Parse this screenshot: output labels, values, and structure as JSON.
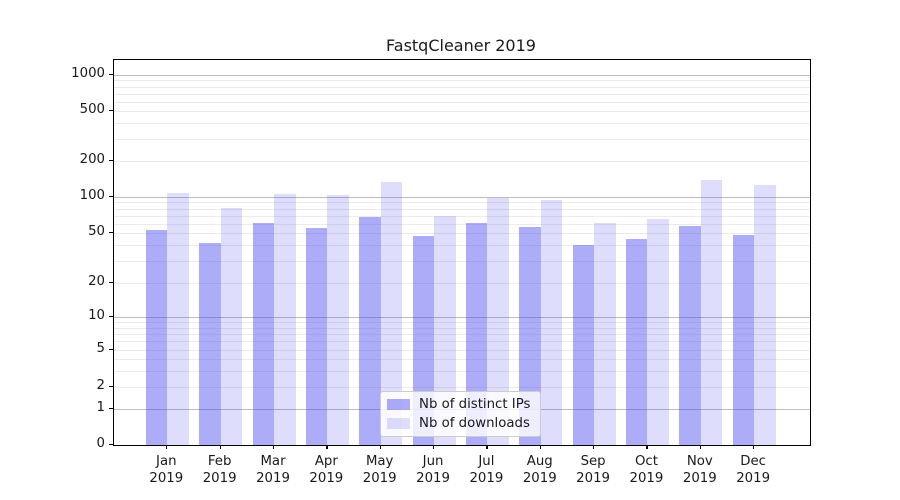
{
  "title": "FastqCleaner 2019",
  "colors": {
    "bar_ips": "rgba(70,70,240,0.45)",
    "bar_downloads": "rgba(70,70,240,0.18)",
    "axis": "#000000",
    "grid_major": "#bdbdbd",
    "grid_minor": "#ebebeb"
  },
  "legend": {
    "items": [
      {
        "label": "Nb of distinct IPs",
        "series": "ips"
      },
      {
        "label": "Nb of downloads",
        "series": "downloads"
      }
    ]
  },
  "chart_data": {
    "type": "bar",
    "title": "FastqCleaner 2019",
    "categories": [
      "Jan",
      "Feb",
      "Mar",
      "Apr",
      "May",
      "Jun",
      "Jul",
      "Aug",
      "Sep",
      "Oct",
      "Nov",
      "Dec"
    ],
    "category_year": "2019",
    "series": [
      {
        "name": "Nb of distinct IPs",
        "values": [
          53,
          42,
          61,
          55,
          68,
          47,
          61,
          56,
          40,
          45,
          57,
          48
        ]
      },
      {
        "name": "Nb of downloads",
        "values": [
          108,
          81,
          106,
          103,
          133,
          70,
          98,
          95,
          61,
          65,
          140,
          126
        ]
      }
    ],
    "yscale": "symlog",
    "yticks": [
      0,
      1,
      2,
      5,
      10,
      20,
      50,
      100,
      200,
      500,
      1000
    ],
    "ytick_labels": [
      "0",
      "1",
      "2",
      "5",
      "10",
      "20",
      "50",
      "100",
      "200",
      "500",
      "1000"
    ],
    "ylim": [
      0,
      1300
    ],
    "grid": "both",
    "legend_position": "lower center"
  }
}
